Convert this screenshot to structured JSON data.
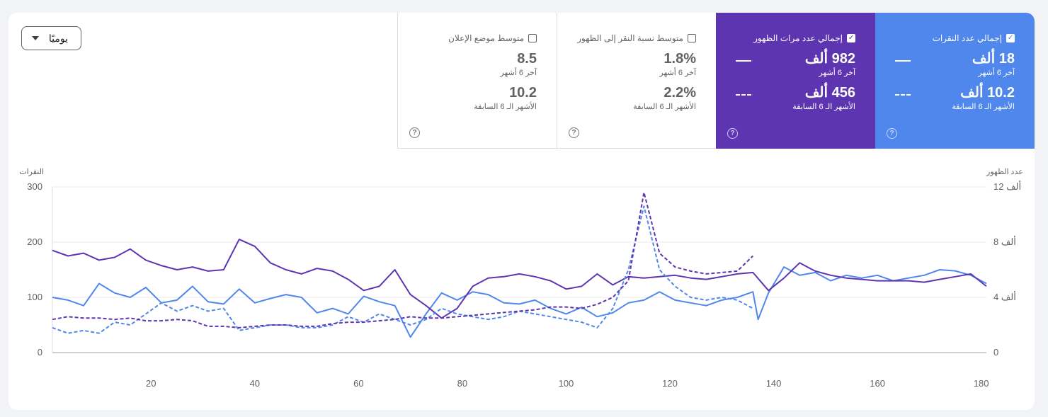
{
  "granularity": {
    "selected": "يوميًا"
  },
  "metrics": [
    {
      "key": "clicks",
      "label": "إجمالي عدد النقرات",
      "checked": true,
      "value": "18 ألف",
      "value_label": "آخر 6 أشهر",
      "prev_value": "10.2 ألف",
      "prev_label": "الأشهر الـ 6 السابقة",
      "color": "#5087ec"
    },
    {
      "key": "impressions",
      "label": "إجمالي عدد مرات الظهور",
      "checked": true,
      "value": "982 ألف",
      "value_label": "آخر 6 أشهر",
      "prev_value": "456 ألف",
      "prev_label": "الأشهر الـ 6 السابقة",
      "color": "#5e35b1"
    },
    {
      "key": "ctr",
      "label": "متوسط نسبة النقر إلى الظهور",
      "checked": false,
      "value": "1.8%",
      "value_label": "آخر 6 أشهر",
      "prev_value": "2.2%",
      "prev_label": "الأشهر الـ 6 السابقة",
      "color": "#ffffff"
    },
    {
      "key": "position",
      "label": "متوسط موضع الإعلان",
      "checked": false,
      "value": "8.5",
      "value_label": "آخر 6 أشهر",
      "prev_value": "10.2",
      "prev_label": "الأشهر الـ 6 السابقة",
      "color": "#ffffff"
    }
  ],
  "help_icon": "?",
  "chart_data": {
    "type": "line",
    "left_axis": {
      "title": "النقرات",
      "ticks": [
        0,
        100,
        200,
        300
      ],
      "range": [
        0,
        300
      ]
    },
    "right_axis": {
      "title": "عدد الظهور",
      "ticks": [
        "0",
        "4 ألف",
        "8 ألف",
        "12 ألف"
      ],
      "range": [
        0,
        12000
      ]
    },
    "x_ticks": [
      20,
      40,
      60,
      80,
      100,
      120,
      140,
      160,
      180
    ],
    "x_range": [
      1,
      181
    ],
    "grid": true,
    "series": [
      {
        "metric": "clicks",
        "period": "current",
        "axis": "left",
        "style": "solid",
        "color": "#5087ec",
        "x": [
          1,
          4,
          7,
          10,
          13,
          16,
          19,
          22,
          25,
          28,
          31,
          34,
          37,
          40,
          43,
          46,
          49,
          52,
          55,
          58,
          61,
          64,
          67,
          70,
          73,
          76,
          79,
          82,
          85,
          88,
          91,
          94,
          97,
          100,
          103,
          106,
          109,
          112,
          115,
          118,
          121,
          124,
          127,
          130,
          133,
          136,
          137,
          139,
          142,
          145,
          148,
          151,
          154,
          157,
          160,
          163,
          166,
          169,
          172,
          175,
          178,
          181
        ],
        "y": [
          100,
          95,
          85,
          125,
          108,
          100,
          118,
          90,
          95,
          120,
          92,
          88,
          115,
          90,
          98,
          105,
          100,
          72,
          80,
          70,
          102,
          92,
          85,
          28,
          70,
          108,
          95,
          110,
          105,
          90,
          88,
          95,
          80,
          70,
          82,
          65,
          72,
          90,
          95,
          110,
          95,
          90,
          85,
          95,
          100,
          110,
          60,
          108,
          155,
          140,
          145,
          130,
          140,
          135,
          140,
          130,
          135,
          140,
          150,
          148,
          140,
          125
        ]
      },
      {
        "metric": "impressions",
        "period": "current",
        "axis": "right",
        "style": "solid",
        "color": "#5e35b1",
        "x": [
          1,
          4,
          7,
          10,
          13,
          16,
          19,
          22,
          25,
          28,
          31,
          34,
          37,
          40,
          43,
          46,
          49,
          52,
          55,
          58,
          61,
          64,
          67,
          70,
          73,
          76,
          79,
          82,
          85,
          88,
          91,
          94,
          97,
          100,
          103,
          106,
          109,
          112,
          115,
          118,
          121,
          124,
          127,
          130,
          133,
          136,
          139,
          142,
          145,
          148,
          151,
          154,
          157,
          160,
          163,
          166,
          169,
          172,
          175,
          178,
          181
        ],
        "y": [
          7400,
          7000,
          7200,
          6700,
          6900,
          7500,
          6700,
          6300,
          6000,
          6200,
          5900,
          6000,
          8200,
          7700,
          6500,
          6000,
          5700,
          6100,
          5900,
          5300,
          4500,
          4800,
          6000,
          4200,
          3400,
          2500,
          3200,
          4800,
          5400,
          5500,
          5700,
          5500,
          5200,
          4600,
          4800,
          5700,
          4900,
          5500,
          5400,
          5500,
          5600,
          5400,
          5300,
          5500,
          5700,
          5800,
          4500,
          5400,
          6500,
          5900,
          5600,
          5400,
          5300,
          5200,
          5200,
          5200,
          5100,
          5300,
          5500,
          5700,
          4800
        ]
      },
      {
        "metric": "clicks",
        "period": "previous",
        "axis": "left",
        "style": "dashed",
        "color": "#5087ec",
        "x": [
          1,
          4,
          7,
          10,
          13,
          16,
          19,
          22,
          25,
          28,
          31,
          34,
          37,
          40,
          43,
          46,
          49,
          52,
          55,
          58,
          61,
          64,
          67,
          70,
          73,
          76,
          79,
          82,
          85,
          88,
          91,
          94,
          97,
          100,
          103,
          106,
          109,
          112,
          115,
          118,
          121,
          124,
          127,
          130,
          133,
          136
        ],
        "y": [
          45,
          35,
          40,
          35,
          55,
          50,
          70,
          90,
          75,
          85,
          75,
          80,
          40,
          45,
          50,
          50,
          45,
          45,
          50,
          65,
          55,
          70,
          60,
          50,
          60,
          80,
          70,
          65,
          60,
          65,
          75,
          70,
          65,
          60,
          55,
          45,
          80,
          150,
          265,
          150,
          120,
          100,
          95,
          100,
          95,
          80
        ]
      },
      {
        "metric": "impressions",
        "period": "previous",
        "axis": "right",
        "style": "dashed",
        "color": "#5e35b1",
        "x": [
          1,
          4,
          7,
          10,
          13,
          16,
          19,
          22,
          25,
          28,
          31,
          34,
          37,
          40,
          43,
          46,
          49,
          52,
          55,
          58,
          61,
          64,
          67,
          70,
          73,
          76,
          79,
          82,
          85,
          88,
          91,
          94,
          97,
          100,
          103,
          106,
          109,
          112,
          115,
          118,
          121,
          124,
          127,
          130,
          133,
          136
        ],
        "y": [
          2400,
          2600,
          2500,
          2500,
          2400,
          2500,
          2300,
          2300,
          2400,
          2300,
          1900,
          1900,
          1800,
          1900,
          2000,
          2000,
          1900,
          1900,
          2100,
          2200,
          2200,
          2300,
          2400,
          2600,
          2500,
          2500,
          2600,
          2700,
          2800,
          2900,
          3000,
          3100,
          3300,
          3300,
          3200,
          3500,
          4000,
          5200,
          11600,
          7200,
          6200,
          5900,
          5700,
          5800,
          5900,
          7000
        ]
      }
    ]
  }
}
